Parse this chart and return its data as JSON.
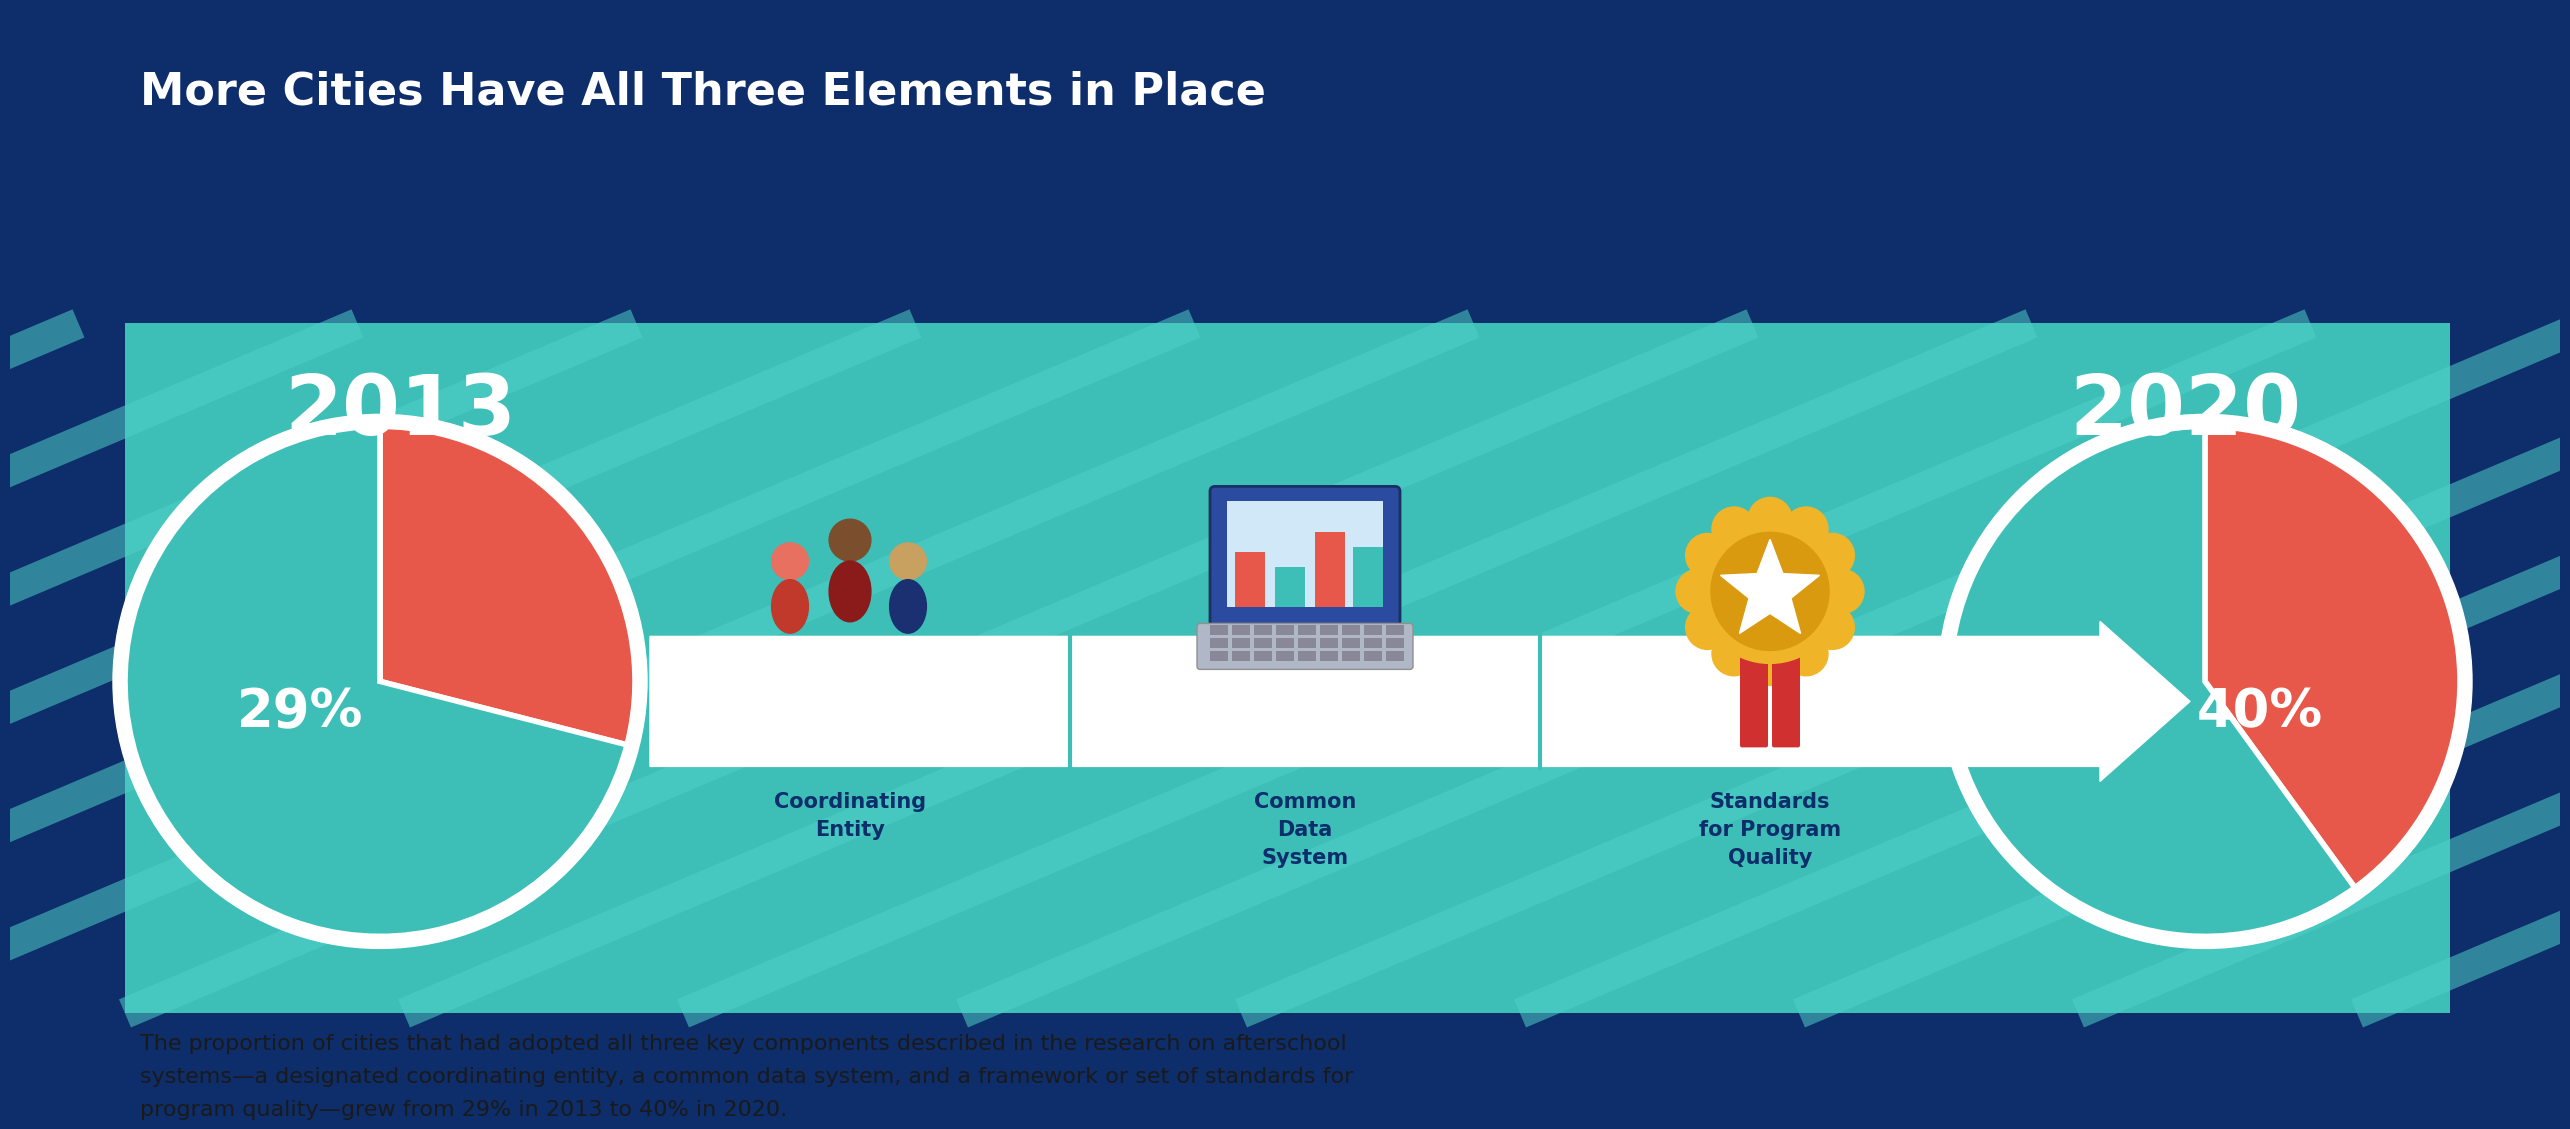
{
  "title": "More Cities Have All Three Elements in Place",
  "title_color": "#FFFFFF",
  "title_fontsize": 32,
  "bg_color": "#0D2D6B",
  "teal_bg": "#3DBFB8",
  "teal_stripe_light": "#4ECFC8",
  "year_2013": "2013",
  "year_2020": "2020",
  "pct_2013": 29,
  "pct_2020": 40,
  "pie_color_red": "#E8584A",
  "pie_color_teal": "#3DBFB8",
  "year_fontsize": 60,
  "pct_fontsize": 36,
  "label1": "Coordinating\nEntity",
  "label2": "Common\nData\nSystem",
  "label3": "Standards\nfor Program\nQuality",
  "label_color": "#0D2D6B",
  "label_fontsize": 15,
  "arrow_color": "#FFFFFF",
  "body_text": "The proportion of cities that had adopted all three key components described in the research on afterschool\nsystems—a designated coordinating entity, a common data system, and a framework or set of standards for\nprogram quality—grew from 29% in 2013 to 40% in 2020.",
  "body_fontsize": 16,
  "body_color": "#1A1A1A",
  "white": "#FFFFFF"
}
